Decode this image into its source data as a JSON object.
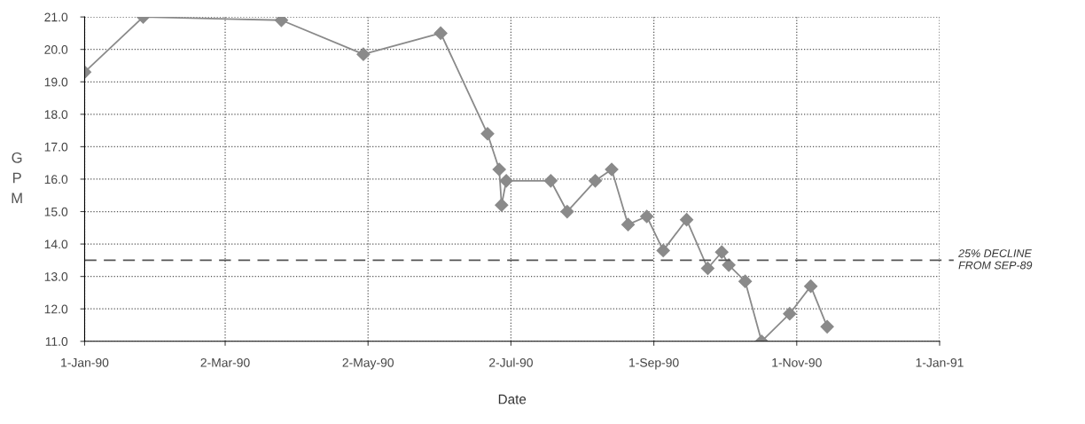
{
  "chart_data": {
    "type": "line",
    "xlabel": "Date",
    "ylabel": "GPM",
    "x": [
      "1990-01-01",
      "1990-01-26",
      "1990-03-26",
      "1990-04-30",
      "1990-06-02",
      "1990-06-22",
      "1990-06-27",
      "1990-06-28",
      "1990-06-30",
      "1990-07-19",
      "1990-07-26",
      "1990-08-07",
      "1990-08-14",
      "1990-08-21",
      "1990-08-29",
      "1990-09-05",
      "1990-09-15",
      "1990-09-24",
      "1990-09-30",
      "1990-10-03",
      "1990-10-10",
      "1990-10-17",
      "1990-10-29",
      "1990-11-07",
      "1990-11-14"
    ],
    "series": [
      {
        "color": "#8a8a8a",
        "values": [
          19.3,
          21.0,
          20.9,
          19.85,
          20.5,
          17.4,
          16.3,
          15.2,
          15.95,
          15.95,
          15.0,
          15.95,
          16.3,
          14.6,
          14.85,
          13.8,
          14.75,
          13.25,
          13.75,
          13.35,
          12.85,
          11.0,
          11.85,
          12.7,
          11.45
        ]
      }
    ],
    "marker": "diamond",
    "line_style": "solid",
    "grid": true,
    "xlim": [
      "1990-01-01",
      "1991-01-01"
    ],
    "xticks": [
      {
        "value": "1990-01-01",
        "label": "1-Jan-90"
      },
      {
        "value": "1990-03-02",
        "label": "2-Mar-90"
      },
      {
        "value": "1990-05-02",
        "label": "2-May-90"
      },
      {
        "value": "1990-07-02",
        "label": "2-Jul-90"
      },
      {
        "value": "1990-09-01",
        "label": "1-Sep-90"
      },
      {
        "value": "1990-11-01",
        "label": "1-Nov-90"
      },
      {
        "value": "1991-01-01",
        "label": "1-Jan-91"
      }
    ],
    "ylim": [
      11,
      21
    ],
    "yticks": [
      {
        "value": 11,
        "label": "11.0"
      },
      {
        "value": 12,
        "label": "12.0"
      },
      {
        "value": 13,
        "label": "13.0"
      },
      {
        "value": 14,
        "label": "14.0"
      },
      {
        "value": 15,
        "label": "15.0"
      },
      {
        "value": 16,
        "label": "16.0"
      },
      {
        "value": 17,
        "label": "17.0"
      },
      {
        "value": 18,
        "label": "18.0"
      },
      {
        "value": 19,
        "label": "19.0"
      },
      {
        "value": 20,
        "label": "20.0"
      },
      {
        "value": 21,
        "label": "21.0"
      }
    ],
    "ref_lines": [
      {
        "axis": "y",
        "value": 13.5,
        "label": "25% DECLINE\nFROM SEP-89",
        "color": "#555555",
        "line_style": "dashed"
      }
    ]
  }
}
